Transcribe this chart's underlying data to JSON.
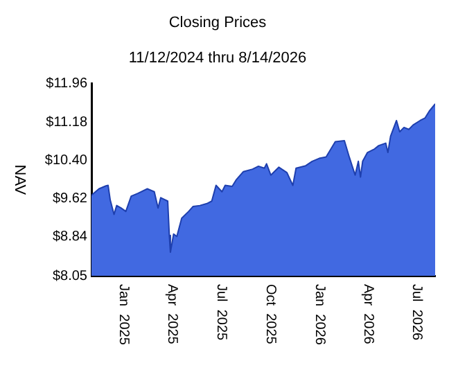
{
  "chart_data": {
    "type": "area",
    "title": "Closing Prices",
    "subtitle": "11/12/2024 thru 8/14/2026",
    "ylabel": "NAV",
    "x": [
      "2024-11-12",
      "2024-11-26",
      "2024-12-09",
      "2024-12-13",
      "2024-12-17",
      "2024-12-24",
      "2024-12-29",
      "2025-01-06",
      "2025-01-15",
      "2025-01-25",
      "2025-02-07",
      "2025-02-24",
      "2025-03-09",
      "2025-03-16",
      "2025-03-21",
      "2025-04-03",
      "2025-04-06",
      "2025-04-08",
      "2025-04-14",
      "2025-04-20",
      "2025-04-29",
      "2025-05-12",
      "2025-05-20",
      "2025-06-02",
      "2025-06-15",
      "2025-06-24",
      "2025-07-02",
      "2025-07-13",
      "2025-07-19",
      "2025-08-01",
      "2025-08-09",
      "2025-08-22",
      "2025-09-08",
      "2025-09-19",
      "2025-09-30",
      "2025-10-04",
      "2025-10-12",
      "2025-10-27",
      "2025-11-11",
      "2025-11-22",
      "2025-11-28",
      "2025-12-16",
      "2025-12-28",
      "2026-01-10",
      "2026-01-23",
      "2026-02-09",
      "2026-02-26",
      "2026-03-07",
      "2026-03-18",
      "2026-03-24",
      "2026-03-28",
      "2026-04-01",
      "2026-04-10",
      "2026-04-23",
      "2026-05-01",
      "2026-05-14",
      "2026-05-18",
      "2026-05-23",
      "2026-06-03",
      "2026-06-09",
      "2026-06-17",
      "2026-06-26",
      "2026-07-04",
      "2026-07-17",
      "2026-07-26",
      "2026-08-03",
      "2026-08-12",
      "2026-08-14"
    ],
    "series": [
      {
        "color": "#4169e1",
        "values": [
          9.69,
          9.82,
          9.88,
          9.89,
          9.59,
          9.3,
          9.48,
          9.43,
          9.36,
          9.67,
          9.73,
          9.82,
          9.76,
          9.43,
          9.64,
          9.57,
          8.87,
          8.53,
          8.9,
          8.85,
          9.22,
          9.36,
          9.46,
          9.48,
          9.52,
          9.57,
          9.89,
          9.76,
          9.89,
          9.87,
          10.01,
          10.17,
          10.22,
          10.28,
          10.24,
          10.33,
          10.1,
          10.26,
          10.15,
          9.89,
          10.24,
          10.29,
          10.38,
          10.44,
          10.47,
          10.78,
          10.8,
          10.47,
          10.1,
          10.38,
          10.06,
          10.38,
          10.56,
          10.63,
          10.7,
          10.75,
          10.56,
          10.89,
          11.21,
          10.98,
          11.07,
          11.03,
          11.12,
          11.21,
          11.26,
          11.4,
          11.52,
          11.55
        ]
      }
    ],
    "xlim": [
      "2024-11-12",
      "2026-08-14"
    ],
    "xticks": [
      {
        "value": "2025-01-01",
        "label": "Jan  2025"
      },
      {
        "value": "2025-04-01",
        "label": "Apr  2025"
      },
      {
        "value": "2025-07-01",
        "label": "Jul  2025"
      },
      {
        "value": "2025-10-01",
        "label": "Oct  2025"
      },
      {
        "value": "2026-01-01",
        "label": "Jan  2026"
      },
      {
        "value": "2026-04-01",
        "label": "Apr  2026"
      },
      {
        "value": "2026-07-01",
        "label": "Jul  2026"
      }
    ],
    "ylim": [
      8.05,
      11.96
    ],
    "yticks": [
      {
        "value": 8.05,
        "label": "$8.05"
      },
      {
        "value": 8.84,
        "label": "$8.84"
      },
      {
        "value": 9.62,
        "label": "$9.62"
      },
      {
        "value": 10.4,
        "label": "$10.40"
      },
      {
        "value": 11.18,
        "label": "$11.18"
      },
      {
        "value": 11.96,
        "label": "$11.96"
      }
    ],
    "grid": false,
    "legend": false
  }
}
